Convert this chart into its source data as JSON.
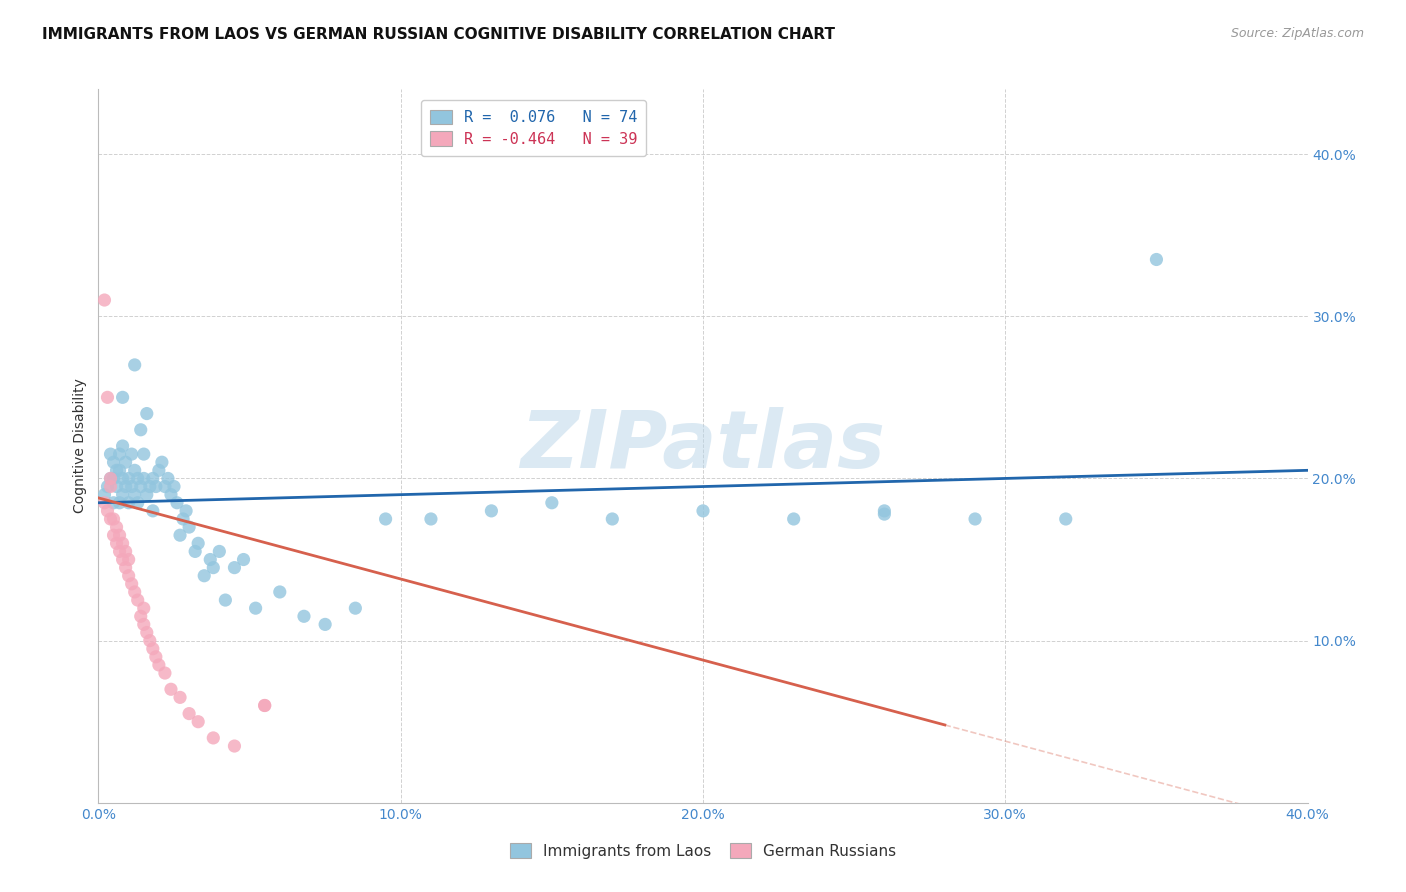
{
  "title": "IMMIGRANTS FROM LAOS VS GERMAN RUSSIAN COGNITIVE DISABILITY CORRELATION CHART",
  "source": "Source: ZipAtlas.com",
  "ylabel": "Cognitive Disability",
  "x_min": 0.0,
  "x_max": 0.4,
  "y_min": 0.0,
  "y_max": 0.44,
  "x_ticks": [
    0.0,
    0.1,
    0.2,
    0.3,
    0.4
  ],
  "y_ticks": [
    0.1,
    0.2,
    0.3,
    0.4
  ],
  "legend_label1": "Immigrants from Laos",
  "legend_label2": "German Russians",
  "blue_color": "#92c5de",
  "pink_color": "#f4a8bb",
  "blue_line_color": "#2166ac",
  "pink_line_color": "#d6604d",
  "watermark_text": "ZIPatlas",
  "blue_line_x0": 0.0,
  "blue_line_y0": 0.185,
  "blue_line_x1": 0.4,
  "blue_line_y1": 0.205,
  "pink_line_x0": 0.0,
  "pink_line_y0": 0.188,
  "pink_line_x1": 0.28,
  "pink_line_y1": 0.048,
  "blue_scatter_x": [
    0.002,
    0.003,
    0.004,
    0.004,
    0.005,
    0.005,
    0.005,
    0.006,
    0.006,
    0.007,
    0.007,
    0.007,
    0.008,
    0.008,
    0.008,
    0.009,
    0.009,
    0.01,
    0.01,
    0.011,
    0.011,
    0.012,
    0.012,
    0.013,
    0.013,
    0.014,
    0.014,
    0.015,
    0.015,
    0.016,
    0.016,
    0.017,
    0.018,
    0.018,
    0.019,
    0.02,
    0.021,
    0.022,
    0.023,
    0.024,
    0.025,
    0.026,
    0.027,
    0.028,
    0.029,
    0.03,
    0.032,
    0.033,
    0.035,
    0.037,
    0.038,
    0.04,
    0.042,
    0.045,
    0.048,
    0.052,
    0.06,
    0.068,
    0.075,
    0.085,
    0.095,
    0.11,
    0.13,
    0.15,
    0.17,
    0.2,
    0.23,
    0.26,
    0.29,
    0.32,
    0.008,
    0.012,
    0.26,
    0.35
  ],
  "blue_scatter_y": [
    0.19,
    0.195,
    0.2,
    0.215,
    0.185,
    0.2,
    0.21,
    0.195,
    0.205,
    0.215,
    0.185,
    0.205,
    0.19,
    0.2,
    0.22,
    0.195,
    0.21,
    0.185,
    0.2,
    0.195,
    0.215,
    0.205,
    0.19,
    0.2,
    0.185,
    0.195,
    0.23,
    0.2,
    0.215,
    0.19,
    0.24,
    0.195,
    0.2,
    0.18,
    0.195,
    0.205,
    0.21,
    0.195,
    0.2,
    0.19,
    0.195,
    0.185,
    0.165,
    0.175,
    0.18,
    0.17,
    0.155,
    0.16,
    0.14,
    0.15,
    0.145,
    0.155,
    0.125,
    0.145,
    0.15,
    0.12,
    0.13,
    0.115,
    0.11,
    0.12,
    0.175,
    0.175,
    0.18,
    0.185,
    0.175,
    0.18,
    0.175,
    0.18,
    0.175,
    0.175,
    0.25,
    0.27,
    0.178,
    0.335
  ],
  "pink_scatter_x": [
    0.002,
    0.003,
    0.004,
    0.004,
    0.005,
    0.005,
    0.006,
    0.006,
    0.007,
    0.007,
    0.008,
    0.008,
    0.009,
    0.009,
    0.01,
    0.01,
    0.011,
    0.012,
    0.013,
    0.014,
    0.015,
    0.015,
    0.016,
    0.017,
    0.018,
    0.019,
    0.02,
    0.022,
    0.024,
    0.027,
    0.03,
    0.033,
    0.038,
    0.045,
    0.055,
    0.002,
    0.003,
    0.004,
    0.055
  ],
  "pink_scatter_y": [
    0.185,
    0.18,
    0.175,
    0.195,
    0.165,
    0.175,
    0.16,
    0.17,
    0.155,
    0.165,
    0.15,
    0.16,
    0.145,
    0.155,
    0.14,
    0.15,
    0.135,
    0.13,
    0.125,
    0.115,
    0.11,
    0.12,
    0.105,
    0.1,
    0.095,
    0.09,
    0.085,
    0.08,
    0.07,
    0.065,
    0.055,
    0.05,
    0.04,
    0.035,
    0.06,
    0.31,
    0.25,
    0.2,
    0.06
  ]
}
